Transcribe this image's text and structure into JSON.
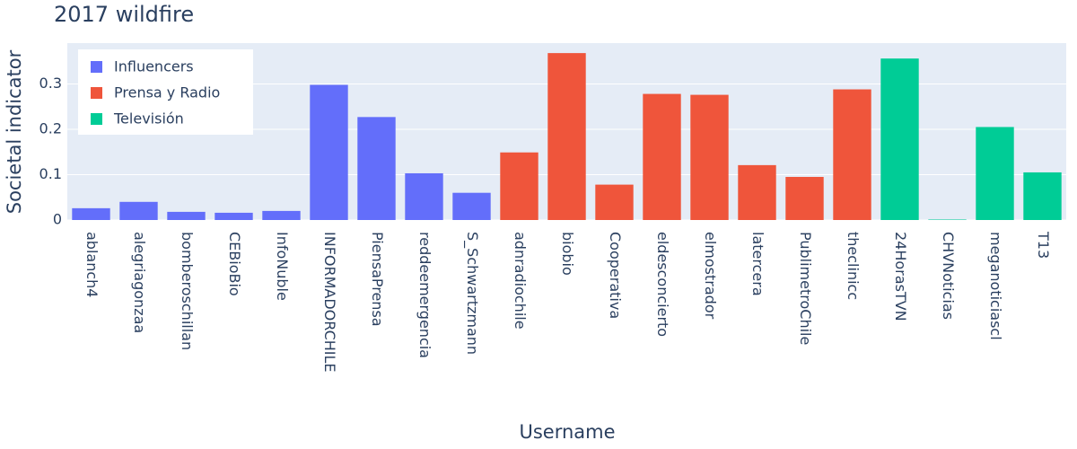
{
  "chart_data": {
    "type": "bar",
    "title": "2017 wildfire",
    "x_label": "Username",
    "y_label": "Societal indicator",
    "categories": [
      "ablanch4",
      "alegriagonzaa",
      "bomberoschillan",
      "CEBioBio",
      "InfoNuble",
      "INFORMADORCHILE",
      "PiensaPrensa",
      "reddeemergencia",
      "S_Schwartzmann",
      "adnradiochile",
      "biobio",
      "Cooperativa",
      "eldesconcierto",
      "elmostrador",
      "latercera",
      "PublimetroChile",
      "theclinicc",
      "24HorasTVN",
      "CHVNoticias",
      "meganoticiascl",
      "T13"
    ],
    "series": [
      {
        "name": "Influencers",
        "color": "#636efa",
        "values": [
          0.026,
          0.04,
          0.018,
          0.016,
          0.02,
          0.298,
          0.227,
          0.103,
          0.06,
          null,
          null,
          null,
          null,
          null,
          null,
          null,
          null,
          null,
          null,
          null,
          null
        ]
      },
      {
        "name": "Prensa y Radio",
        "color": "#EF553B",
        "values": [
          null,
          null,
          null,
          null,
          null,
          null,
          null,
          null,
          null,
          0.149,
          0.368,
          0.078,
          0.278,
          0.276,
          0.121,
          0.095,
          0.288,
          null,
          null,
          null,
          null
        ]
      },
      {
        "name": "Televisión",
        "color": "#00cc96",
        "values": [
          null,
          null,
          null,
          null,
          null,
          null,
          null,
          null,
          null,
          null,
          null,
          null,
          null,
          null,
          null,
          null,
          null,
          0.356,
          0.001,
          0.205,
          0.105
        ]
      }
    ],
    "ylim": [
      0,
      0.39
    ],
    "yticks": [
      0,
      0.1,
      0.2,
      0.3
    ],
    "grid": true,
    "legend": "top-left"
  }
}
